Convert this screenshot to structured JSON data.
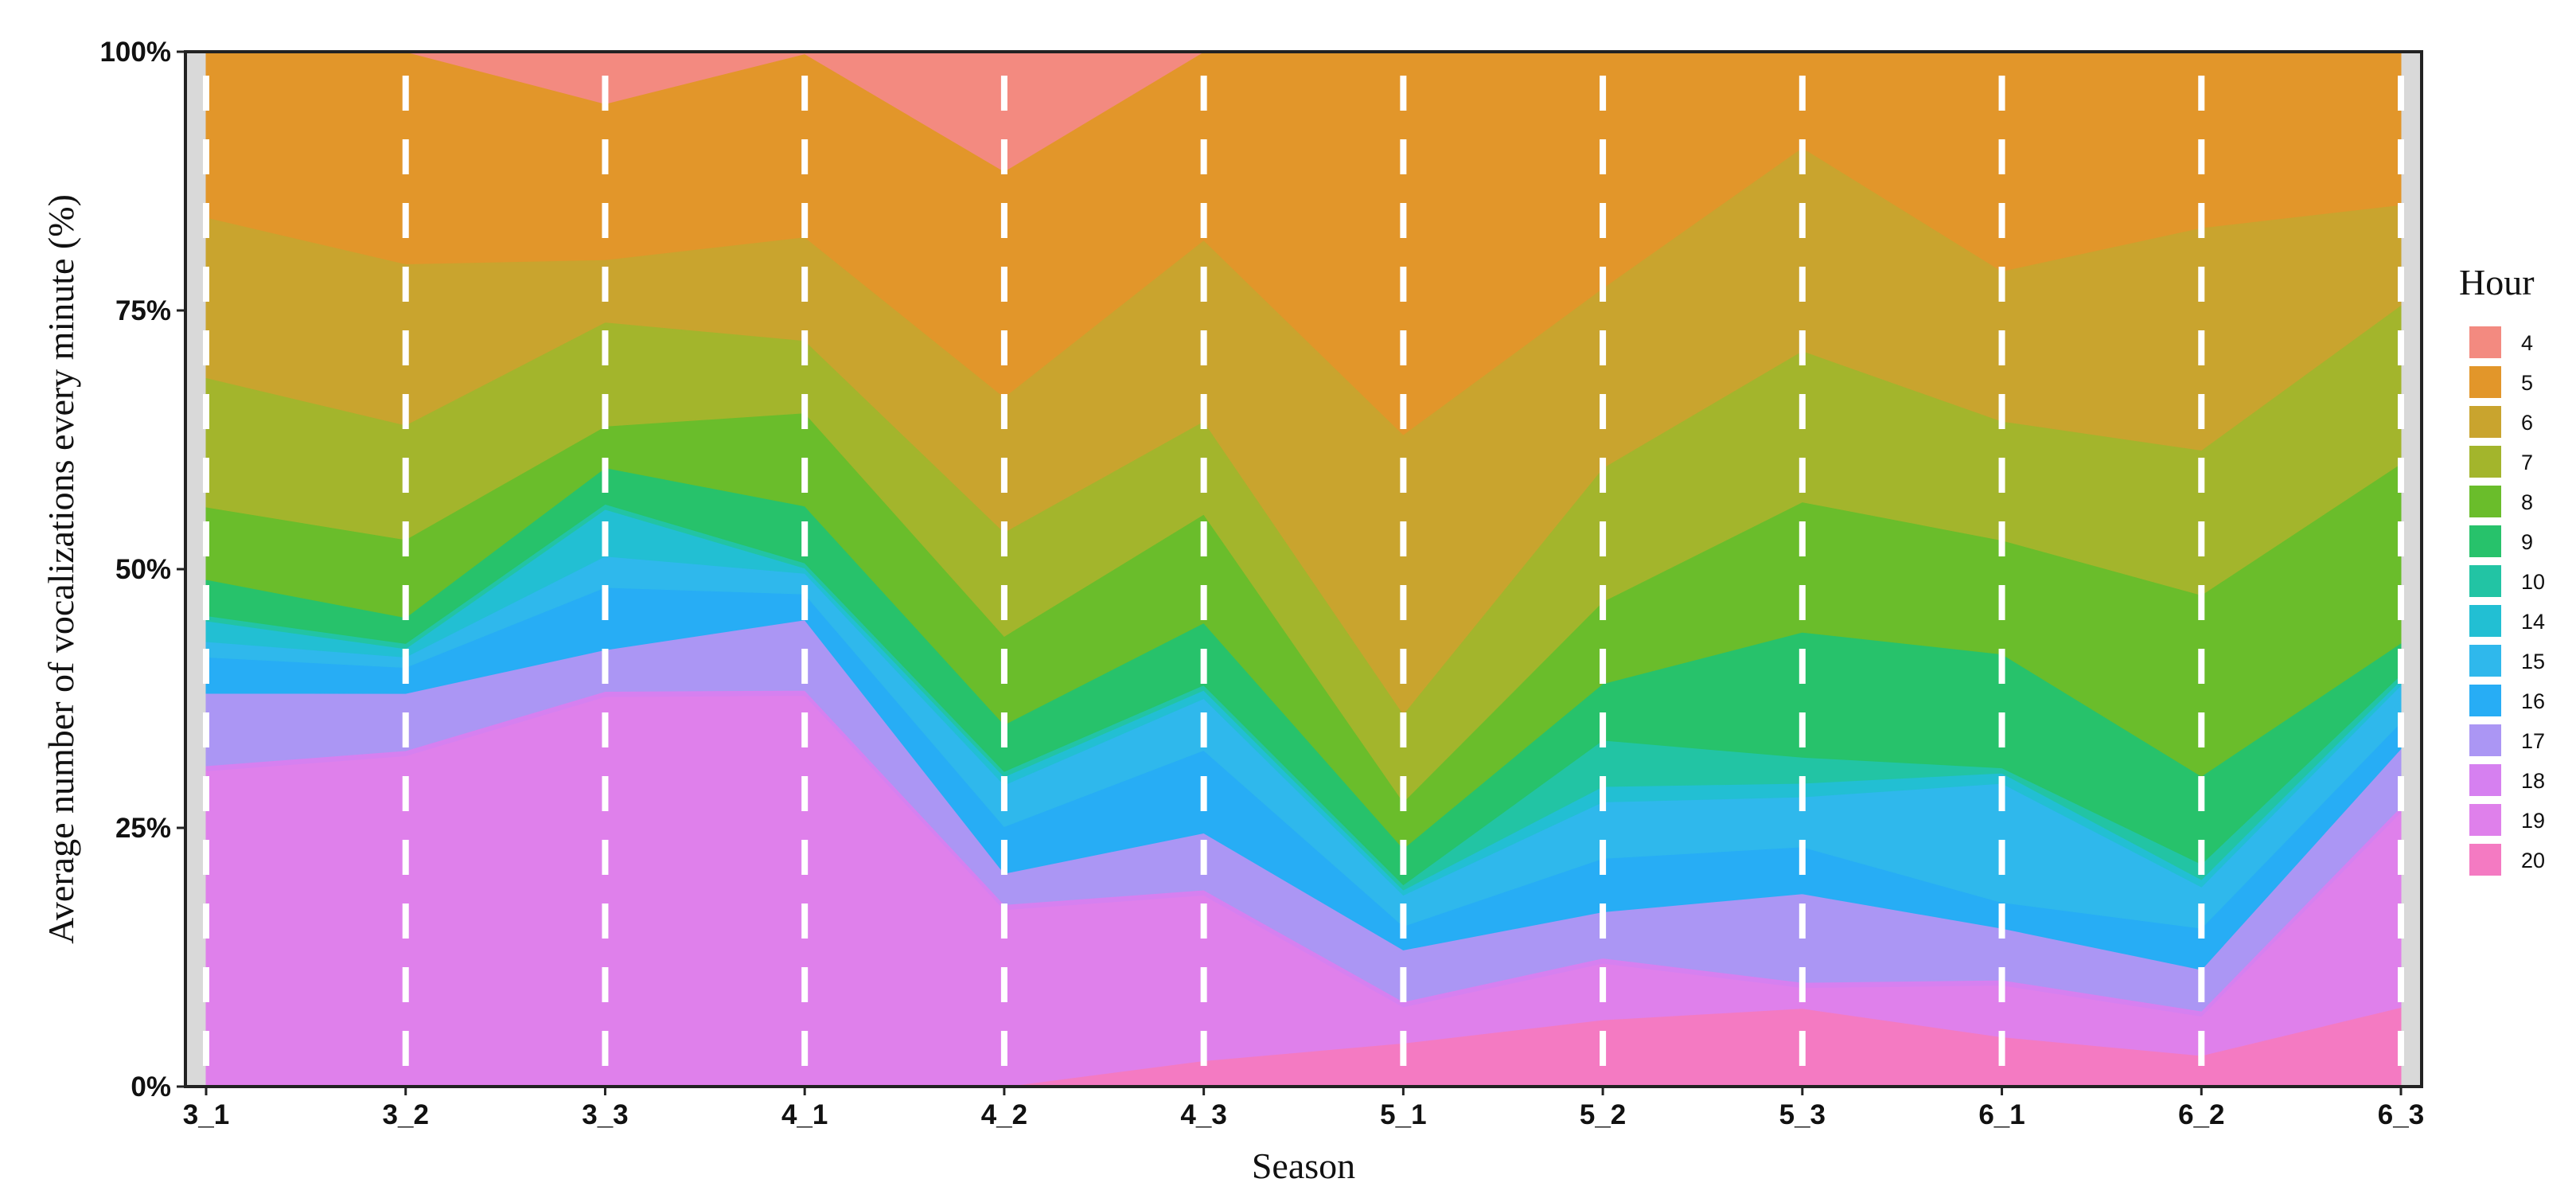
{
  "chart_data": {
    "type": "area",
    "stacking": "percent",
    "xlabel": "Season",
    "ylabel": "Average number of vocalizations every minute   (%)",
    "categories": [
      "3_1",
      "3_2",
      "3_3",
      "4_1",
      "4_2",
      "4_3",
      "5_1",
      "5_2",
      "5_3",
      "6_1",
      "6_2",
      "6_3"
    ],
    "ylim": [
      0,
      100
    ],
    "yticks": [
      "0%",
      "25%",
      "50%",
      "75%",
      "100%"
    ],
    "grid": false,
    "gridlines": "white dashed vertical line at each season",
    "legend": {
      "title": "Hour",
      "position": "right"
    },
    "series": [
      {
        "name": "20",
        "color": "#f47ac2",
        "values": [
          0,
          0,
          0,
          0,
          0,
          2.5,
          4.2,
          6.5,
          7.5,
          4.8,
          3.0,
          7.5
        ]
      },
      {
        "name": "19",
        "color": "#df80eb",
        "values": [
          30.5,
          31.8,
          37.5,
          37.8,
          17.0,
          16.0,
          3.5,
          5.5,
          2.0,
          5.0,
          3.8,
          18.5
        ]
      },
      {
        "name": "18",
        "color": "#d680f0",
        "values": [
          0.5,
          0.5,
          0.5,
          0.5,
          0.5,
          0.5,
          0.5,
          0.5,
          0.5,
          0.5,
          0.5,
          0.5
        ]
      },
      {
        "name": "17",
        "color": "#ab96f4",
        "values": [
          7.0,
          5.5,
          4.0,
          6.8,
          3.0,
          5.5,
          5.0,
          4.5,
          8.5,
          5.0,
          4.0,
          5.5
        ]
      },
      {
        "name": "16",
        "color": "#27adf5",
        "values": [
          3.5,
          2.5,
          6.0,
          2.5,
          4.5,
          8.0,
          2.3,
          5.2,
          4.5,
          2.5,
          4.0,
          2.5
        ]
      },
      {
        "name": "15",
        "color": "#2fb8ec",
        "values": [
          1.5,
          1.0,
          3.0,
          2.0,
          4.0,
          5.0,
          3.0,
          5.5,
          4.8,
          11.5,
          4.0,
          3.5
        ]
      },
      {
        "name": "14",
        "color": "#22bfd3",
        "values": [
          2.0,
          0.8,
          4.5,
          0.5,
          0.8,
          0.8,
          0.5,
          1.5,
          1.3,
          1.0,
          0.7,
          0.5
        ]
      },
      {
        "name": "10",
        "color": "#22c4a4",
        "values": [
          0.5,
          0.5,
          0.5,
          0.5,
          0.5,
          0.5,
          0.5,
          4.5,
          2.5,
          0.5,
          1.5,
          0.5
        ]
      },
      {
        "name": "9",
        "color": "#27c26b",
        "values": [
          3.5,
          2.5,
          3.5,
          5.5,
          4.5,
          6.0,
          3.5,
          5.5,
          12.0,
          11.0,
          8.5,
          3.0
        ]
      },
      {
        "name": "8",
        "color": "#6abd2b",
        "values": [
          7.0,
          7.5,
          4.0,
          9.0,
          8.5,
          10.5,
          4.5,
          8.0,
          12.5,
          11.0,
          17.5,
          17.0
        ]
      },
      {
        "name": "7",
        "color": "#a3b52c",
        "values": [
          12.5,
          11.0,
          10.0,
          7.0,
          10.0,
          9.0,
          8.5,
          13.0,
          14.5,
          11.5,
          14.0,
          15.0
        ]
      },
      {
        "name": "6",
        "color": "#c9a42e",
        "values": [
          15.5,
          15.5,
          6.0,
          10.0,
          13.0,
          17.5,
          27.0,
          17.5,
          19.5,
          14.5,
          21.5,
          9.5
        ]
      },
      {
        "name": "5",
        "color": "#e2962a",
        "values": [
          16.0,
          20.4,
          15.0,
          17.7,
          21.7,
          18.2,
          37.0,
          23.0,
          9.2,
          21.2,
          17.0,
          14.5
        ]
      },
      {
        "name": "4",
        "color": "#f38a80",
        "values": [
          0,
          0,
          5.0,
          0.2,
          11.5,
          0,
          0,
          0,
          0,
          0,
          0,
          0
        ]
      }
    ]
  }
}
